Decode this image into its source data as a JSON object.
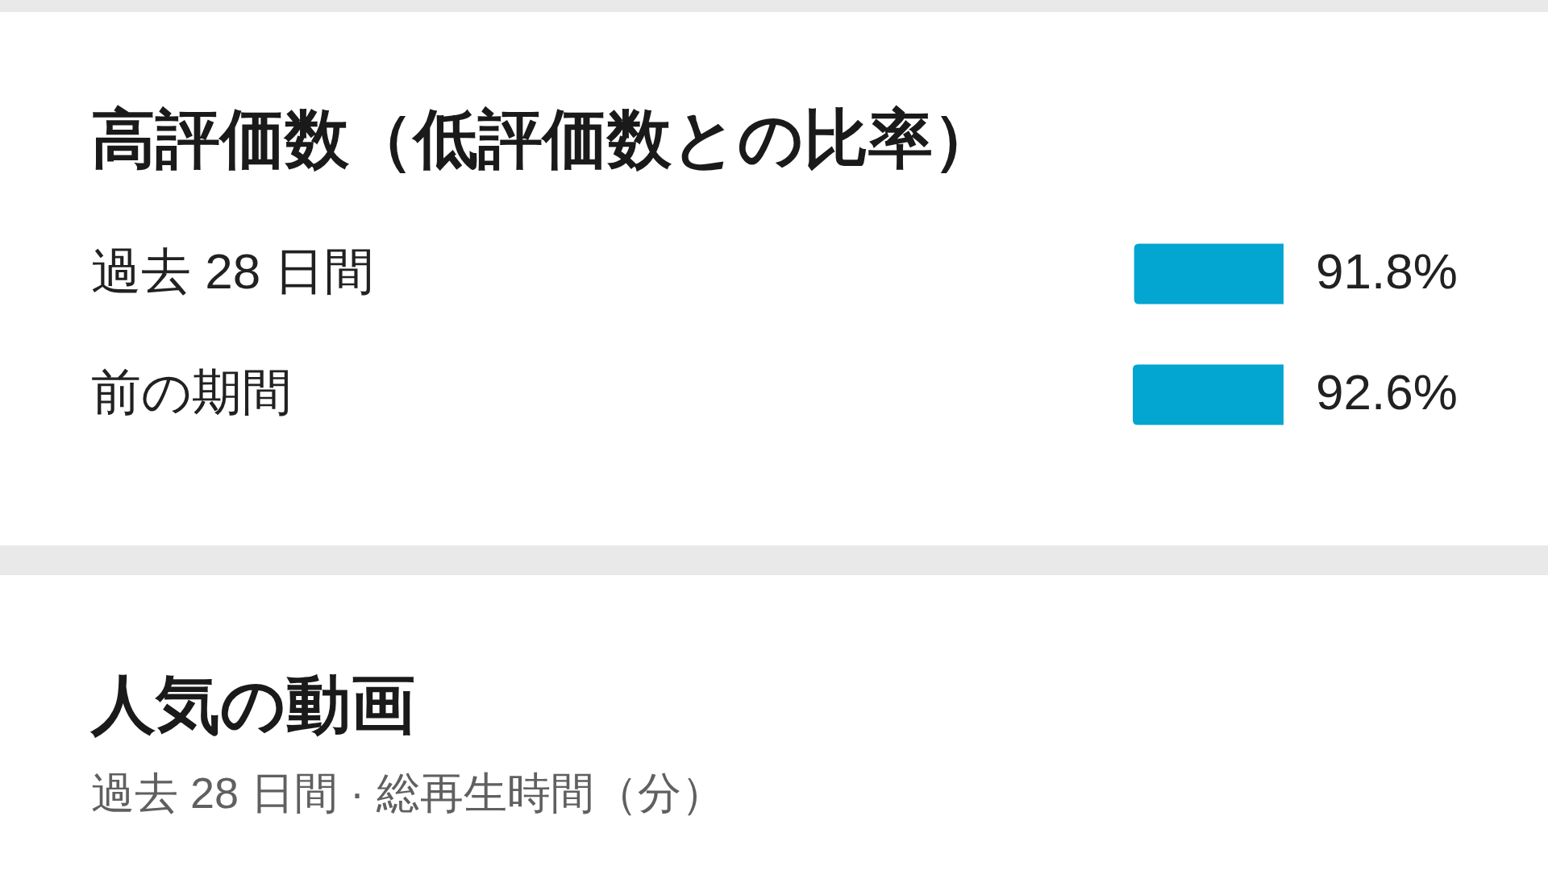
{
  "chart_data": [
    {
      "type": "bar",
      "orientation": "horizontal",
      "title": "高評価数（低評価数との比率）",
      "categories": [
        "過去 28 日間",
        "前の期間"
      ],
      "values": [
        91.8,
        92.6
      ],
      "value_labels": [
        "91.8%",
        "92.6%"
      ],
      "color": "#03a5d1",
      "tick_labels": "y"
    },
    {
      "type": "other",
      "title": "人気の動画",
      "subtitle": "過去 28 日間 · 総再生時間（分）"
    }
  ]
}
